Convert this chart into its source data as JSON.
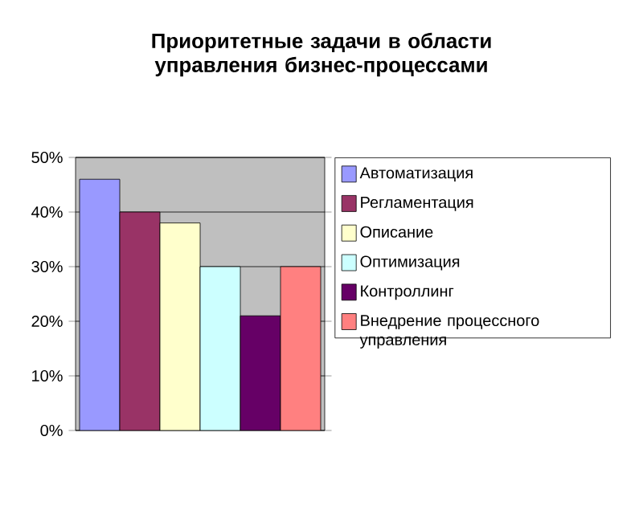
{
  "chart_data": {
    "type": "bar",
    "title": "Приоритетные задачи в области управления бизнес-процессами",
    "categories": [
      null
    ],
    "series": [
      {
        "name": "Автоматизация",
        "color": "#9999ff",
        "values": [
          46
        ]
      },
      {
        "name": "Регламентация",
        "color": "#993366",
        "values": [
          40
        ]
      },
      {
        "name": "Описание",
        "color": "#ffffcc",
        "values": [
          38
        ]
      },
      {
        "name": "Оптимизация",
        "color": "#ccffff",
        "values": [
          30
        ]
      },
      {
        "name": "Контроллинг",
        "color": "#660066",
        "values": [
          21
        ]
      },
      {
        "name": "Внедрение процессного управления",
        "color": "#ff8080",
        "values": [
          30
        ]
      }
    ],
    "ylim": [
      0,
      50
    ],
    "yticks": [
      {
        "value": 0,
        "label": "0%"
      },
      {
        "value": 10,
        "label": "10%"
      },
      {
        "value": 20,
        "label": "20%"
      },
      {
        "value": 30,
        "label": "30%"
      },
      {
        "value": 40,
        "label": "40%"
      },
      {
        "value": 50,
        "label": "50%"
      }
    ],
    "grid": "y",
    "legend": "right"
  }
}
